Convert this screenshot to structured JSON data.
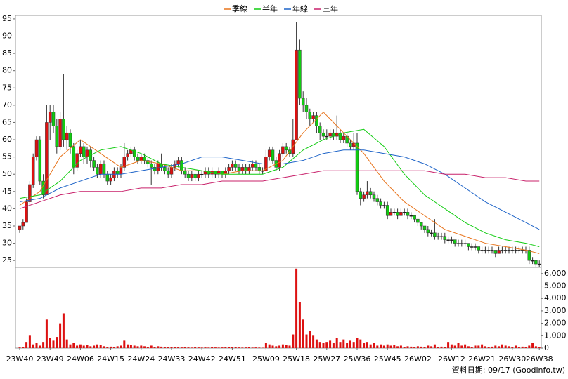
{
  "chart_data": {
    "type": "candlestick",
    "legend": "top",
    "up_color": "#dd1111",
    "down_color": "#11cc11",
    "flat_color": "#000000",
    "volume_color": "#dd1111",
    "footer": "資料日期: 09/17  (Goodinfo.tw)",
    "categories": [
      "23W40",
      null,
      null,
      null,
      null,
      null,
      null,
      null,
      null,
      "23W49",
      null,
      null,
      null,
      null,
      null,
      null,
      null,
      null,
      "24W06",
      null,
      null,
      null,
      null,
      null,
      null,
      null,
      null,
      "24W15",
      null,
      null,
      null,
      null,
      null,
      null,
      null,
      null,
      "24W24",
      null,
      null,
      null,
      null,
      null,
      null,
      null,
      null,
      "24W33",
      null,
      null,
      null,
      null,
      null,
      null,
      null,
      null,
      "24W42",
      null,
      null,
      null,
      null,
      null,
      null,
      null,
      null,
      "24W51",
      null,
      null,
      null,
      null,
      null,
      null,
      null,
      null,
      null,
      "25W09",
      null,
      null,
      null,
      null,
      null,
      null,
      null,
      null,
      "25W18",
      null,
      null,
      null,
      null,
      null,
      null,
      null,
      null,
      "25W27",
      null,
      null,
      null,
      null,
      null,
      null,
      null,
      null,
      "25W36",
      null,
      null,
      null,
      null,
      null,
      null,
      null,
      null,
      "25W45",
      null,
      null,
      null,
      null,
      null,
      null,
      null,
      null,
      "26W02",
      null,
      null,
      null,
      null,
      null,
      null,
      null,
      null,
      null,
      "26W12",
      null,
      null,
      null,
      null,
      null,
      null,
      null,
      null,
      "26W21",
      null,
      null,
      null,
      null,
      null,
      null,
      null,
      null,
      "26W30",
      null,
      null,
      null,
      null,
      null,
      null,
      null,
      "26W38"
    ],
    "candles": [
      [
        34,
        35,
        33,
        35
      ],
      [
        35,
        37,
        34,
        36
      ],
      [
        36,
        43,
        36,
        42
      ],
      [
        42,
        48,
        41,
        47
      ],
      [
        47,
        56,
        46,
        55
      ],
      [
        55,
        61,
        54,
        60
      ],
      [
        60,
        61,
        47,
        48
      ],
      [
        48,
        50,
        43,
        44
      ],
      [
        44,
        70,
        44,
        65
      ],
      [
        65,
        70,
        60,
        68
      ],
      [
        68,
        70,
        62,
        64
      ],
      [
        64,
        66,
        56,
        58
      ],
      [
        58,
        68,
        57,
        66
      ],
      [
        66,
        79,
        58,
        60
      ],
      [
        60,
        64,
        57,
        62
      ],
      [
        62,
        63,
        56,
        58
      ],
      [
        58,
        59,
        50,
        52
      ],
      [
        52,
        57,
        51,
        56
      ],
      [
        56,
        60,
        55,
        58
      ],
      [
        58,
        59,
        53,
        55
      ],
      [
        55,
        58,
        53,
        57
      ],
      [
        57,
        58,
        52,
        54
      ],
      [
        54,
        55,
        51,
        52
      ],
      [
        52,
        53,
        49,
        50
      ],
      [
        50,
        54,
        49,
        53
      ],
      [
        53,
        54,
        49,
        50
      ],
      [
        50,
        51,
        47,
        48
      ],
      [
        48,
        50,
        47,
        49
      ],
      [
        49,
        52,
        48,
        51
      ],
      [
        51,
        52,
        49,
        50
      ],
      [
        50,
        53,
        49,
        52
      ],
      [
        52,
        59,
        51,
        55
      ],
      [
        55,
        57,
        54,
        56
      ],
      [
        56,
        58,
        55,
        57
      ],
      [
        57,
        58,
        54,
        55
      ],
      [
        55,
        56,
        53,
        54
      ],
      [
        54,
        56,
        53,
        55
      ],
      [
        55,
        56,
        53,
        54
      ],
      [
        54,
        55,
        52,
        53
      ],
      [
        53,
        54,
        47,
        52
      ],
      [
        52,
        53,
        50,
        51
      ],
      [
        51,
        54,
        50,
        53
      ],
      [
        53,
        56,
        51,
        52
      ],
      [
        52,
        53,
        50,
        51
      ],
      [
        51,
        52,
        49,
        50
      ],
      [
        50,
        53,
        49,
        52
      ],
      [
        52,
        54,
        51,
        53
      ],
      [
        53,
        55,
        52,
        54
      ],
      [
        54,
        55,
        50,
        51
      ],
      [
        51,
        52,
        49,
        50
      ],
      [
        50,
        51,
        48,
        49
      ],
      [
        49,
        51,
        48,
        50
      ],
      [
        50,
        50,
        48,
        49
      ],
      [
        49,
        51,
        48,
        50
      ],
      [
        50,
        51,
        49,
        50
      ],
      [
        50,
        52,
        49,
        51
      ],
      [
        51,
        52,
        49,
        50
      ],
      [
        50,
        52,
        49,
        51
      ],
      [
        51,
        51,
        49,
        50
      ],
      [
        50,
        52,
        49,
        51
      ],
      [
        51,
        51,
        49,
        50
      ],
      [
        50,
        52,
        49,
        51
      ],
      [
        51,
        53,
        50,
        52
      ],
      [
        52,
        54,
        51,
        53
      ],
      [
        53,
        54,
        51,
        52
      ],
      [
        52,
        53,
        50,
        51
      ],
      [
        51,
        53,
        50,
        52
      ],
      [
        52,
        53,
        50,
        51
      ],
      [
        51,
        53,
        50,
        52
      ],
      [
        52,
        54,
        51,
        53
      ],
      [
        53,
        54,
        51,
        52
      ],
      [
        52,
        53,
        50,
        51
      ],
      [
        51,
        52,
        50,
        51
      ],
      [
        51,
        57,
        51,
        55
      ],
      [
        55,
        58,
        54,
        57
      ],
      [
        57,
        58,
        53,
        54
      ],
      [
        54,
        55,
        51,
        52
      ],
      [
        52,
        57,
        51,
        56
      ],
      [
        56,
        59,
        55,
        58
      ],
      [
        58,
        59,
        56,
        57
      ],
      [
        57,
        58,
        55,
        56
      ],
      [
        56,
        66,
        55,
        60
      ],
      [
        60,
        94,
        60,
        86
      ],
      [
        86,
        89,
        70,
        72
      ],
      [
        72,
        74,
        68,
        70
      ],
      [
        70,
        72,
        66,
        68
      ],
      [
        68,
        69,
        64,
        66
      ],
      [
        66,
        68,
        65,
        67
      ],
      [
        67,
        68,
        62,
        64
      ],
      [
        64,
        65,
        60,
        62
      ],
      [
        62,
        63,
        60,
        61
      ],
      [
        61,
        63,
        60,
        61
      ],
      [
        61,
        63,
        60,
        62
      ],
      [
        62,
        63,
        60,
        61
      ],
      [
        61,
        67,
        60,
        62
      ],
      [
        62,
        63,
        59,
        60
      ],
      [
        60,
        62,
        59,
        61
      ],
      [
        61,
        62,
        58,
        59
      ],
      [
        59,
        60,
        57,
        58
      ],
      [
        58,
        62,
        57,
        59
      ],
      [
        59,
        62,
        44,
        45
      ],
      [
        45,
        46,
        41,
        43
      ],
      [
        43,
        45,
        42,
        44
      ],
      [
        44,
        48,
        43,
        45
      ],
      [
        45,
        46,
        43,
        44
      ],
      [
        44,
        45,
        42,
        43
      ],
      [
        43,
        44,
        41,
        42
      ],
      [
        42,
        43,
        40,
        41
      ],
      [
        41,
        42,
        40,
        41
      ],
      [
        41,
        42,
        37,
        38
      ],
      [
        38,
        40,
        38,
        39
      ],
      [
        39,
        40,
        38,
        39
      ],
      [
        39,
        40,
        37,
        38
      ],
      [
        38,
        40,
        38,
        39
      ],
      [
        39,
        40,
        38,
        39
      ],
      [
        39,
        40,
        37,
        38
      ],
      [
        38,
        39,
        37,
        38
      ],
      [
        38,
        38,
        36,
        37
      ],
      [
        37,
        37,
        35,
        36
      ],
      [
        36,
        36,
        34,
        35
      ],
      [
        35,
        35,
        33,
        34
      ],
      [
        34,
        35,
        32,
        33
      ],
      [
        33,
        34,
        32,
        33
      ],
      [
        33,
        37,
        31,
        32
      ],
      [
        32,
        33,
        31,
        32
      ],
      [
        32,
        33,
        31,
        32
      ],
      [
        32,
        33,
        30,
        31
      ],
      [
        31,
        32,
        30,
        31
      ],
      [
        31,
        32,
        30,
        31
      ],
      [
        31,
        31,
        29,
        30
      ],
      [
        30,
        31,
        29,
        30
      ],
      [
        30,
        31,
        29,
        30
      ],
      [
        30,
        31,
        29,
        30
      ],
      [
        30,
        30,
        28,
        29
      ],
      [
        29,
        30,
        28,
        29
      ],
      [
        29,
        30,
        28,
        29
      ],
      [
        29,
        29,
        27,
        28
      ],
      [
        28,
        29,
        27,
        28
      ],
      [
        28,
        29,
        27,
        28
      ],
      [
        28,
        29,
        27,
        28
      ],
      [
        28,
        29,
        27,
        28
      ],
      [
        28,
        28,
        26,
        27
      ],
      [
        27,
        29,
        27,
        28
      ],
      [
        28,
        29,
        27,
        28
      ],
      [
        28,
        29,
        27,
        28
      ],
      [
        28,
        29,
        27,
        28
      ],
      [
        28,
        29,
        27,
        28
      ],
      [
        28,
        29,
        27,
        28
      ],
      [
        28,
        29,
        27,
        28
      ],
      [
        28,
        29,
        27,
        28
      ],
      [
        28,
        29,
        27,
        28
      ],
      [
        28,
        29,
        24,
        25
      ],
      [
        25,
        26,
        24,
        25
      ],
      [
        25,
        25,
        23,
        24
      ],
      [
        24,
        25,
        23,
        24
      ]
    ],
    "volume": [
      50,
      60,
      500,
      1000,
      300,
      400,
      200,
      500,
      2300,
      800,
      600,
      900,
      2000,
      2800,
      700,
      300,
      400,
      200,
      300,
      200,
      250,
      150,
      200,
      300,
      250,
      150,
      100,
      120,
      100,
      150,
      200,
      600,
      300,
      250,
      200,
      150,
      200,
      150,
      100,
      200,
      100,
      150,
      120,
      100,
      80,
      100,
      80,
      60,
      50,
      60,
      50,
      40,
      60,
      50,
      40,
      50,
      40,
      60,
      50,
      40,
      50,
      60,
      80,
      100,
      60,
      50,
      40,
      50,
      60,
      40,
      50,
      40,
      30,
      400,
      300,
      200,
      150,
      200,
      300,
      250,
      200,
      1100,
      6400,
      3700,
      2300,
      1100,
      1400,
      1000,
      700,
      500,
      400,
      500,
      600,
      400,
      800,
      500,
      700,
      400,
      600,
      500,
      800,
      700,
      400,
      500,
      300,
      400,
      200,
      300,
      200,
      300,
      200,
      250,
      150,
      200,
      100,
      150,
      120,
      100,
      150,
      120,
      100,
      200,
      150,
      300,
      100,
      120,
      100,
      500,
      300,
      200,
      400,
      200,
      300,
      150,
      100,
      200,
      200,
      300,
      150,
      100,
      120,
      200,
      150,
      300,
      200,
      150,
      100,
      200,
      100,
      120,
      80,
      200,
      400,
      150,
      100
    ],
    "series": [
      {
        "name": "季線",
        "color": "#e8741c",
        "x": [
          0,
          6,
          12,
          18,
          24,
          30,
          36,
          42,
          48,
          54,
          60,
          66,
          72,
          78,
          84,
          90,
          96,
          102,
          108,
          114,
          120,
          126,
          132,
          138,
          144,
          150,
          154
        ],
        "values": [
          41,
          45,
          55,
          60,
          56,
          52,
          54,
          53,
          51,
          51,
          50,
          51,
          51,
          54,
          62,
          68,
          62,
          56,
          48,
          42,
          38,
          34,
          32,
          30,
          29,
          28,
          27
        ]
      },
      {
        "name": "半年",
        "color": "#11cc11",
        "x": [
          0,
          6,
          12,
          18,
          24,
          30,
          36,
          42,
          48,
          54,
          60,
          66,
          72,
          78,
          84,
          90,
          96,
          102,
          108,
          114,
          120,
          126,
          132,
          138,
          144,
          150,
          154
        ],
        "values": [
          43,
          44,
          48,
          54,
          57,
          58,
          56,
          53,
          52,
          51,
          50,
          50,
          50,
          52,
          57,
          60,
          62,
          63,
          58,
          50,
          44,
          40,
          36,
          33,
          31,
          30,
          29
        ]
      },
      {
        "name": "年線",
        "color": "#1e64c8",
        "x": [
          0,
          6,
          12,
          18,
          24,
          30,
          36,
          42,
          48,
          54,
          60,
          66,
          72,
          78,
          84,
          90,
          96,
          102,
          108,
          114,
          120,
          126,
          132,
          138,
          144,
          150,
          154
        ],
        "values": [
          42,
          43,
          46,
          48,
          50,
          50,
          51,
          52,
          53,
          55,
          55,
          54,
          53,
          53,
          54,
          56,
          57,
          57,
          56,
          55,
          53,
          50,
          46,
          42,
          39,
          36,
          34
        ]
      },
      {
        "name": "三年",
        "color": "#c8206a",
        "x": [
          0,
          6,
          12,
          18,
          24,
          30,
          36,
          42,
          48,
          54,
          60,
          66,
          72,
          78,
          84,
          90,
          96,
          102,
          108,
          114,
          120,
          126,
          132,
          138,
          144,
          150,
          154
        ],
        "values": [
          40,
          42,
          44,
          45,
          45,
          45,
          46,
          46,
          47,
          47,
          48,
          48,
          48,
          49,
          50,
          51,
          51,
          51,
          51,
          51,
          51,
          50,
          50,
          49,
          49,
          48,
          48
        ]
      }
    ],
    "ylim": [
      23,
      96
    ],
    "yticks": [
      25,
      30,
      35,
      40,
      45,
      50,
      55,
      60,
      65,
      70,
      75,
      80,
      85,
      90,
      95
    ],
    "y2lim": [
      0,
      6500
    ],
    "y2ticks": [
      0,
      {
        "value": 1000,
        "label": "1,000"
      },
      {
        "value": 2000,
        "label": "2,000"
      },
      {
        "value": 3000,
        "label": "3,000"
      },
      {
        "value": 4000,
        "label": "4,000"
      },
      {
        "value": 5000,
        "label": "5,000"
      },
      {
        "value": 6000,
        "label": "6,000"
      }
    ]
  }
}
